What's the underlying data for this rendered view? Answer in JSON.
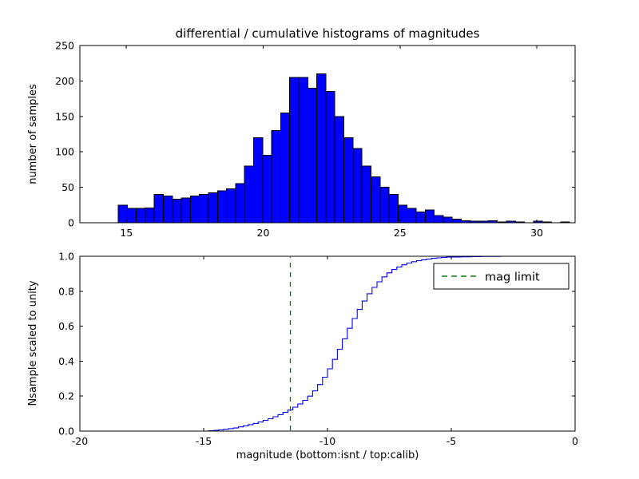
{
  "figure": {
    "title": "differential / cumulative histograms of magnitudes"
  },
  "top_plot": {
    "ylabel": "number of samples"
  },
  "bottom_plot": {
    "ylabel": "Nsample scaled to unity",
    "xlabel": "magnitude (bottom:isnt / top:calib)",
    "legend_label": "mag limit"
  },
  "chart_data": [
    {
      "type": "bar",
      "role": "differential-histogram",
      "title": "differential / cumulative histograms of magnitudes",
      "ylabel": "number of samples",
      "bin_start": 14.7,
      "bin_width": 0.33,
      "values": [
        25,
        20,
        20,
        21,
        40,
        38,
        33,
        35,
        38,
        40,
        42,
        45,
        48,
        55,
        80,
        120,
        95,
        130,
        155,
        205,
        205,
        190,
        210,
        185,
        150,
        120,
        105,
        80,
        65,
        50,
        40,
        25,
        20,
        15,
        18,
        10,
        8,
        5,
        3,
        2,
        2,
        3,
        1,
        2,
        1,
        0,
        2,
        1,
        0,
        1
      ],
      "xlim": [
        13.3,
        31.4
      ],
      "ylim": [
        0,
        250
      ],
      "xticks": [
        15,
        20,
        25,
        30
      ],
      "xtick_labels": [
        "15",
        "20",
        "25",
        "30"
      ],
      "yticks": [
        0,
        50,
        100,
        150,
        200,
        250
      ],
      "ytick_labels": [
        "0",
        "50",
        "100",
        "150",
        "200",
        "250"
      ],
      "bar_color": "#0000ff",
      "bar_edge_color": "#000000",
      "grid": false
    },
    {
      "type": "line",
      "role": "cumulative-histogram",
      "ylabel": "Nsample scaled to unity",
      "xlabel": "magnitude (bottom:isnt / top:calib)",
      "step": true,
      "x": [
        -15.0,
        -14.8,
        -14.6,
        -14.4,
        -14.2,
        -14.0,
        -13.8,
        -13.6,
        -13.4,
        -13.2,
        -13.0,
        -12.8,
        -12.6,
        -12.4,
        -12.2,
        -12.0,
        -11.8,
        -11.6,
        -11.4,
        -11.2,
        -11.0,
        -10.8,
        -10.6,
        -10.4,
        -10.2,
        -10.0,
        -9.8,
        -9.6,
        -9.4,
        -9.2,
        -9.0,
        -8.8,
        -8.6,
        -8.4,
        -8.2,
        -8.0,
        -7.8,
        -7.6,
        -7.4,
        -7.2,
        -7.0,
        -6.8,
        -6.6,
        -6.4,
        -6.2,
        -6.0,
        -5.8,
        -5.6,
        -5.4,
        -5.2,
        -5.0,
        -4.6,
        -4.2,
        -3.8,
        -3.4,
        -3.0,
        -2.6,
        -2.2,
        -1.8
      ],
      "y": [
        0.0,
        0.002,
        0.004,
        0.007,
        0.01,
        0.014,
        0.018,
        0.024,
        0.03,
        0.037,
        0.044,
        0.052,
        0.061,
        0.071,
        0.082,
        0.094,
        0.107,
        0.121,
        0.137,
        0.155,
        0.176,
        0.2,
        0.23,
        0.266,
        0.308,
        0.356,
        0.41,
        0.468,
        0.528,
        0.588,
        0.644,
        0.696,
        0.744,
        0.786,
        0.822,
        0.854,
        0.882,
        0.905,
        0.924,
        0.939,
        0.951,
        0.961,
        0.969,
        0.975,
        0.98,
        0.984,
        0.988,
        0.991,
        0.993,
        0.995,
        0.996,
        0.997,
        0.998,
        0.999,
        0.999,
        1.0,
        1.0,
        1.0,
        1.0
      ],
      "xlim": [
        -20,
        0
      ],
      "ylim": [
        0.0,
        1.0
      ],
      "xticks": [
        -20,
        -15,
        -10,
        -5,
        0
      ],
      "xtick_labels": [
        "-20",
        "-15",
        "-10",
        "-5",
        "0"
      ],
      "yticks": [
        0.0,
        0.2,
        0.4,
        0.6,
        0.8,
        1.0
      ],
      "ytick_labels": [
        "0.0",
        "0.2",
        "0.4",
        "0.6",
        "0.8",
        "1.0"
      ],
      "line_color": "#0000ff",
      "grid": false,
      "legend": {
        "position": "upper right",
        "entries": [
          "mag limit"
        ]
      },
      "annotations": [
        {
          "type": "vline",
          "x": -11.5,
          "color": "#008000",
          "linestyle": "dashed",
          "label": "mag limit"
        }
      ]
    }
  ]
}
